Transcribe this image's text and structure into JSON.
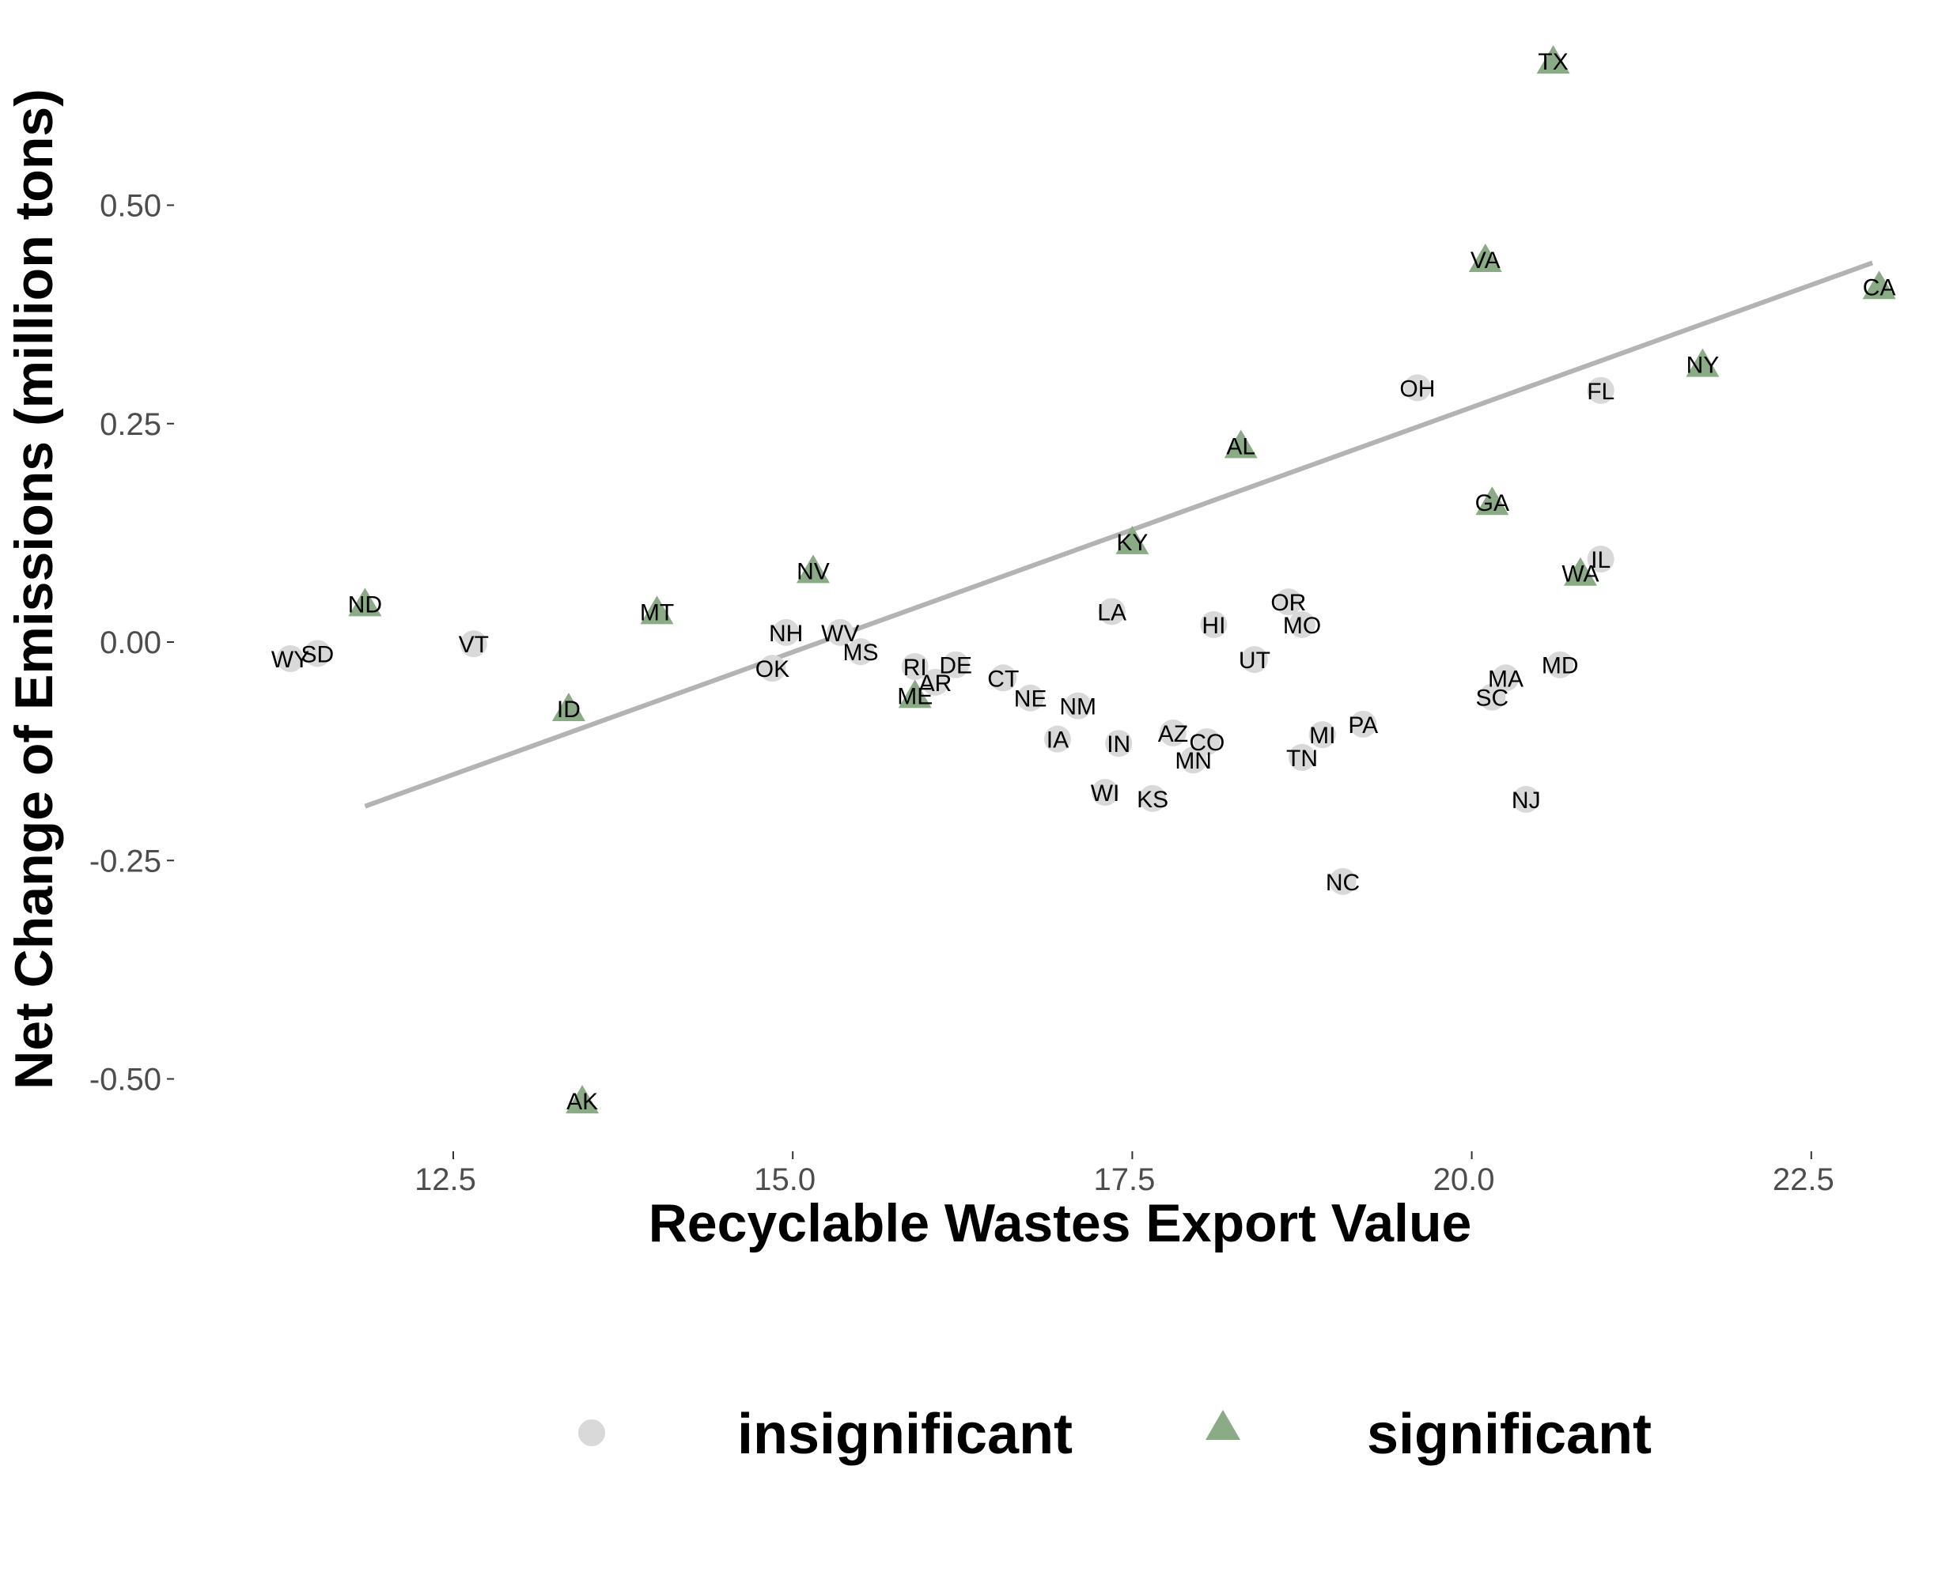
{
  "chart_data": {
    "type": "scatter",
    "xlabel": "Recyclable Wastes Export Value",
    "ylabel": "Net Change of Emissions (million tons)",
    "xlim": [
      11.1,
      23.3
    ],
    "ylim": [
      -0.58,
      0.68
    ],
    "x_ticks": [
      12.5,
      15.0,
      17.5,
      20.0,
      22.5
    ],
    "x_tick_labels": [
      "12.5",
      "15.0",
      "17.5",
      "20.0",
      "22.5"
    ],
    "y_ticks": [
      -0.5,
      -0.25,
      0.0,
      0.25,
      0.5
    ],
    "y_tick_labels": [
      "-0.50",
      "-0.25",
      "0.00",
      "0.25",
      "0.50"
    ],
    "grid": false,
    "legend_position": "bottom",
    "legend": [
      {
        "key": "insignificant",
        "label": "insignificant",
        "shape": "circle",
        "color": "#d9d9d9"
      },
      {
        "key": "significant",
        "label": "significant",
        "shape": "triangle",
        "color": "#8aab86"
      }
    ],
    "trend_line": {
      "x": [
        11.85,
        22.95
      ],
      "y": [
        -0.188,
        0.434
      ],
      "color": "#b3b3b3"
    },
    "points": [
      {
        "label": "TX",
        "x": 20.6,
        "y": 0.665,
        "group": "significant"
      },
      {
        "label": "VA",
        "x": 20.1,
        "y": 0.438,
        "group": "significant"
      },
      {
        "label": "CA",
        "x": 23.0,
        "y": 0.407,
        "group": "significant"
      },
      {
        "label": "NY",
        "x": 21.7,
        "y": 0.318,
        "group": "significant"
      },
      {
        "label": "AL",
        "x": 18.3,
        "y": 0.225,
        "group": "significant"
      },
      {
        "label": "GA",
        "x": 20.15,
        "y": 0.16,
        "group": "significant"
      },
      {
        "label": "KY",
        "x": 17.5,
        "y": 0.115,
        "group": "significant"
      },
      {
        "label": "WA",
        "x": 20.8,
        "y": 0.079,
        "group": "significant"
      },
      {
        "label": "NV",
        "x": 15.15,
        "y": 0.082,
        "group": "significant"
      },
      {
        "label": "ND",
        "x": 11.85,
        "y": 0.044,
        "group": "significant"
      },
      {
        "label": "MT",
        "x": 14.0,
        "y": 0.035,
        "group": "significant"
      },
      {
        "label": "ID",
        "x": 13.35,
        "y": -0.076,
        "group": "significant"
      },
      {
        "label": "ME",
        "x": 15.9,
        "y": -0.061,
        "group": "significant"
      },
      {
        "label": "AK",
        "x": 13.45,
        "y": -0.525,
        "group": "significant"
      },
      {
        "label": "OH",
        "x": 19.6,
        "y": 0.291,
        "group": "insignificant"
      },
      {
        "label": "FL",
        "x": 20.95,
        "y": 0.288,
        "group": "insignificant"
      },
      {
        "label": "IL",
        "x": 20.95,
        "y": 0.095,
        "group": "insignificant"
      },
      {
        "label": "OR",
        "x": 18.65,
        "y": 0.046,
        "group": "insignificant"
      },
      {
        "label": "MO",
        "x": 18.75,
        "y": 0.02,
        "group": "insignificant"
      },
      {
        "label": "HI",
        "x": 18.1,
        "y": 0.02,
        "group": "insignificant"
      },
      {
        "label": "LA",
        "x": 17.35,
        "y": 0.035,
        "group": "insignificant"
      },
      {
        "label": "UT",
        "x": 18.4,
        "y": -0.02,
        "group": "insignificant"
      },
      {
        "label": "MD",
        "x": 20.65,
        "y": -0.026,
        "group": "insignificant"
      },
      {
        "label": "MA",
        "x": 20.25,
        "y": -0.041,
        "group": "insignificant"
      },
      {
        "label": "SC",
        "x": 20.15,
        "y": -0.063,
        "group": "insignificant"
      },
      {
        "label": "NJ",
        "x": 20.4,
        "y": -0.18,
        "group": "insignificant"
      },
      {
        "label": "PA",
        "x": 19.2,
        "y": -0.094,
        "group": "insignificant"
      },
      {
        "label": "MI",
        "x": 18.9,
        "y": -0.106,
        "group": "insignificant"
      },
      {
        "label": "TN",
        "x": 18.75,
        "y": -0.132,
        "group": "insignificant"
      },
      {
        "label": "CO",
        "x": 18.05,
        "y": -0.114,
        "group": "insignificant"
      },
      {
        "label": "MN",
        "x": 17.95,
        "y": -0.135,
        "group": "insignificant"
      },
      {
        "label": "AZ",
        "x": 17.8,
        "y": -0.104,
        "group": "insignificant"
      },
      {
        "label": "NC",
        "x": 19.05,
        "y": -0.274,
        "group": "insignificant"
      },
      {
        "label": "KS",
        "x": 17.65,
        "y": -0.179,
        "group": "insignificant"
      },
      {
        "label": "WI",
        "x": 17.3,
        "y": -0.172,
        "group": "insignificant"
      },
      {
        "label": "IN",
        "x": 17.4,
        "y": -0.116,
        "group": "insignificant"
      },
      {
        "label": "IA",
        "x": 16.95,
        "y": -0.111,
        "group": "insignificant"
      },
      {
        "label": "NM",
        "x": 17.1,
        "y": -0.073,
        "group": "insignificant"
      },
      {
        "label": "NE",
        "x": 16.75,
        "y": -0.064,
        "group": "insignificant"
      },
      {
        "label": "CT",
        "x": 16.55,
        "y": -0.041,
        "group": "insignificant"
      },
      {
        "label": "DE",
        "x": 16.2,
        "y": -0.026,
        "group": "insignificant"
      },
      {
        "label": "AR",
        "x": 16.05,
        "y": -0.046,
        "group": "insignificant"
      },
      {
        "label": "RI",
        "x": 15.9,
        "y": -0.028,
        "group": "insignificant"
      },
      {
        "label": "MS",
        "x": 15.5,
        "y": -0.011,
        "group": "insignificant"
      },
      {
        "label": "WV",
        "x": 15.35,
        "y": 0.011,
        "group": "insignificant"
      },
      {
        "label": "NH",
        "x": 14.95,
        "y": 0.011,
        "group": "insignificant"
      },
      {
        "label": "OK",
        "x": 14.85,
        "y": -0.03,
        "group": "insignificant"
      },
      {
        "label": "VT",
        "x": 12.65,
        "y": -0.002,
        "group": "insignificant"
      },
      {
        "label": "SD",
        "x": 11.5,
        "y": -0.013,
        "group": "insignificant"
      },
      {
        "label": "WY",
        "x": 11.3,
        "y": -0.019,
        "group": "insignificant"
      }
    ]
  }
}
